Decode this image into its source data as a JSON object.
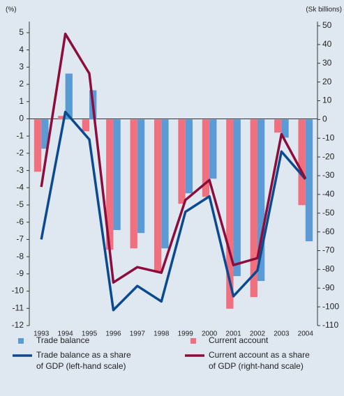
{
  "chart_data": {
    "type": "bar_line",
    "y_label": "(%)",
    "y2_label": "(Sk billions)",
    "categories": [
      "1993",
      "1994",
      "1995",
      "1996",
      "1997",
      "1998",
      "1999",
      "2000",
      "2001",
      "2002",
      "2003",
      "2004"
    ],
    "ylim": [
      -12,
      5.4
    ],
    "yticks": [
      -12,
      -11,
      -10,
      -9,
      -8,
      -7,
      -6,
      -5,
      -4,
      -3,
      -2,
      -1,
      0,
      1,
      2,
      3,
      4,
      5
    ],
    "y2lim": [
      -110,
      50
    ],
    "y2ticks": [
      -110,
      -100,
      -90,
      -80,
      -70,
      -60,
      -50,
      -40,
      -30,
      -20,
      -10,
      0,
      10,
      20,
      30,
      40,
      50
    ],
    "series": [
      {
        "name": "Trade balance",
        "kind": "bar",
        "axis": "y2",
        "color": "#5b9bd5",
        "values": [
          -15.6,
          24.5,
          15.6,
          -59,
          -60.6,
          -68.8,
          -39.4,
          -31.6,
          -83.6,
          -86.2,
          -9.7,
          -65
        ]
      },
      {
        "name": "Current account",
        "kind": "bar",
        "axis": "y2",
        "color": "#f0707f",
        "values": [
          -27.9,
          1.9,
          -6.3,
          -69.5,
          -68.8,
          -81.4,
          -45,
          -41.3,
          -101,
          -94.8,
          -7,
          -45.7
        ]
      },
      {
        "name": "Trade balance as a share of GDP (left-hand scale)",
        "kind": "line",
        "axis": "y",
        "color": "#0b4a8f",
        "values": [
          -7.0,
          0.4,
          -1.2,
          -11.1,
          -9.7,
          -10.6,
          -5.4,
          -4.5,
          -10.3,
          -8.8,
          -1.9,
          -3.5
        ]
      },
      {
        "name": "Current account as a share of GDP (right-hand scale)",
        "kind": "line",
        "axis": "y2",
        "color": "#8c0c3c",
        "values": [
          -36,
          45.7,
          24.5,
          -87,
          -78.8,
          -81.8,
          -43,
          -32.3,
          -77.7,
          -74,
          -7.8,
          -31.6
        ]
      }
    ]
  }
}
